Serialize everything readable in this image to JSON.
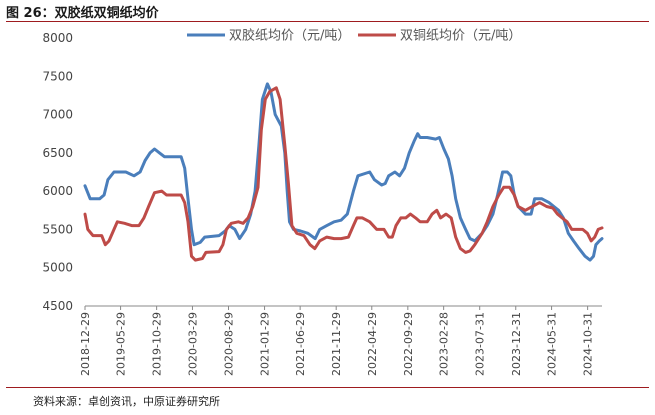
{
  "header": {
    "title": "图 26：双胶纸双铜纸均价"
  },
  "footer": {
    "source": "资料来源：卓创资讯，中原证券研究所"
  },
  "colors": {
    "series1": "#4a7ebb",
    "series2": "#be4b48",
    "accent": "#9e1b1f"
  },
  "chart_data": {
    "type": "line",
    "title": "",
    "xlabel": "",
    "ylabel": "",
    "ylim": [
      4500,
      8000
    ],
    "yticks": [
      4500,
      5000,
      5500,
      6000,
      6500,
      7000,
      7500,
      8000
    ],
    "x_range": [
      "2018-12-29",
      "2024-12-31"
    ],
    "x_ticks": [
      "2018-12-29",
      "2019-05-29",
      "2019-10-29",
      "2020-03-29",
      "2020-08-29",
      "2021-01-29",
      "2021-06-29",
      "2021-11-29",
      "2022-04-29",
      "2022-09-29",
      "2023-02-28",
      "2023-07-31",
      "2023-12-31",
      "2024-05-31",
      "2024-10-31"
    ],
    "grid": false,
    "legend_position": "top",
    "series": [
      {
        "name": "双胶纸均价（元/吨）",
        "points": [
          [
            "2018-12-29",
            6070
          ],
          [
            "2019-01-20",
            5900
          ],
          [
            "2019-03-01",
            5900
          ],
          [
            "2019-03-20",
            5950
          ],
          [
            "2019-04-05",
            6150
          ],
          [
            "2019-05-01",
            6250
          ],
          [
            "2019-06-20",
            6250
          ],
          [
            "2019-07-25",
            6200
          ],
          [
            "2019-08-20",
            6250
          ],
          [
            "2019-09-10",
            6400
          ],
          [
            "2019-10-01",
            6500
          ],
          [
            "2019-10-20",
            6550
          ],
          [
            "2019-11-10",
            6500
          ],
          [
            "2019-12-01",
            6450
          ],
          [
            "2020-02-10",
            6450
          ],
          [
            "2020-02-25",
            6300
          ],
          [
            "2020-03-10",
            5900
          ],
          [
            "2020-03-25",
            5500
          ],
          [
            "2020-04-05",
            5300
          ],
          [
            "2020-05-01",
            5330
          ],
          [
            "2020-05-20",
            5400
          ],
          [
            "2020-07-20",
            5420
          ],
          [
            "2020-08-15",
            5480
          ],
          [
            "2020-09-01",
            5550
          ],
          [
            "2020-09-25",
            5500
          ],
          [
            "2020-10-15",
            5380
          ],
          [
            "2020-11-10",
            5500
          ],
          [
            "2020-12-01",
            5700
          ],
          [
            "2020-12-20",
            6000
          ],
          [
            "2021-01-05",
            6600
          ],
          [
            "2021-01-20",
            7200
          ],
          [
            "2021-02-10",
            7400
          ],
          [
            "2021-02-25",
            7300
          ],
          [
            "2021-03-15",
            7000
          ],
          [
            "2021-04-10",
            6850
          ],
          [
            "2021-04-25",
            6500
          ],
          [
            "2021-05-05",
            6000
          ],
          [
            "2021-05-15",
            5600
          ],
          [
            "2021-06-01",
            5500
          ],
          [
            "2021-07-01",
            5480
          ],
          [
            "2021-08-01",
            5450
          ],
          [
            "2021-09-01",
            5380
          ],
          [
            "2021-09-20",
            5500
          ],
          [
            "2021-10-20",
            5550
          ],
          [
            "2021-11-20",
            5600
          ],
          [
            "2021-12-20",
            5620
          ],
          [
            "2022-01-15",
            5700
          ],
          [
            "2022-02-10",
            6000
          ],
          [
            "2022-03-01",
            6200
          ],
          [
            "2022-04-20",
            6250
          ],
          [
            "2022-05-10",
            6150
          ],
          [
            "2022-06-10",
            6080
          ],
          [
            "2022-06-25",
            6100
          ],
          [
            "2022-07-10",
            6200
          ],
          [
            "2022-08-05",
            6250
          ],
          [
            "2022-08-25",
            6200
          ],
          [
            "2022-09-15",
            6300
          ],
          [
            "2022-10-05",
            6500
          ],
          [
            "2022-10-25",
            6650
          ],
          [
            "2022-11-10",
            6750
          ],
          [
            "2022-11-20",
            6700
          ],
          [
            "2022-12-20",
            6700
          ],
          [
            "2023-01-25",
            6680
          ],
          [
            "2023-02-10",
            6700
          ],
          [
            "2023-03-01",
            6550
          ],
          [
            "2023-03-20",
            6420
          ],
          [
            "2023-04-05",
            6200
          ],
          [
            "2023-04-20",
            5900
          ],
          [
            "2023-05-10",
            5650
          ],
          [
            "2023-06-01",
            5500
          ],
          [
            "2023-06-20",
            5380
          ],
          [
            "2023-07-10",
            5350
          ],
          [
            "2023-08-10",
            5450
          ],
          [
            "2023-09-01",
            5550
          ],
          [
            "2023-09-25",
            5700
          ],
          [
            "2023-10-15",
            5950
          ],
          [
            "2023-11-05",
            6250
          ],
          [
            "2023-11-25",
            6250
          ],
          [
            "2023-12-10",
            6200
          ],
          [
            "2023-12-25",
            5950
          ],
          [
            "2024-01-10",
            5800
          ],
          [
            "2024-02-10",
            5700
          ],
          [
            "2024-03-05",
            5700
          ],
          [
            "2024-03-20",
            5900
          ],
          [
            "2024-04-20",
            5900
          ],
          [
            "2024-05-20",
            5850
          ],
          [
            "2024-06-10",
            5800
          ],
          [
            "2024-06-30",
            5750
          ],
          [
            "2024-07-20",
            5650
          ],
          [
            "2024-08-10",
            5450
          ],
          [
            "2024-09-01",
            5350
          ],
          [
            "2024-09-25",
            5250
          ],
          [
            "2024-10-20",
            5150
          ],
          [
            "2024-11-10",
            5100
          ],
          [
            "2024-11-25",
            5150
          ],
          [
            "2024-12-05",
            5300
          ],
          [
            "2024-12-20",
            5350
          ],
          [
            "2024-12-31",
            5380
          ]
        ]
      },
      {
        "name": "双铜纸均价（元/吨）",
        "points": [
          [
            "2018-12-29",
            5700
          ],
          [
            "2019-01-10",
            5500
          ],
          [
            "2019-02-01",
            5420
          ],
          [
            "2019-03-10",
            5420
          ],
          [
            "2019-03-25",
            5300
          ],
          [
            "2019-04-10",
            5350
          ],
          [
            "2019-05-01",
            5500
          ],
          [
            "2019-05-15",
            5600
          ],
          [
            "2019-06-15",
            5580
          ],
          [
            "2019-07-15",
            5550
          ],
          [
            "2019-08-15",
            5550
          ],
          [
            "2019-09-05",
            5650
          ],
          [
            "2019-09-25",
            5800
          ],
          [
            "2019-10-20",
            5980
          ],
          [
            "2019-11-20",
            6000
          ],
          [
            "2019-12-10",
            5950
          ],
          [
            "2020-02-10",
            5950
          ],
          [
            "2020-02-25",
            5850
          ],
          [
            "2020-03-10",
            5600
          ],
          [
            "2020-03-25",
            5150
          ],
          [
            "2020-04-10",
            5100
          ],
          [
            "2020-05-10",
            5120
          ],
          [
            "2020-05-25",
            5200
          ],
          [
            "2020-07-20",
            5210
          ],
          [
            "2020-08-05",
            5300
          ],
          [
            "2020-08-20",
            5500
          ],
          [
            "2020-09-10",
            5580
          ],
          [
            "2020-10-10",
            5600
          ],
          [
            "2020-10-30",
            5580
          ],
          [
            "2020-11-20",
            5650
          ],
          [
            "2020-12-10",
            5800
          ],
          [
            "2021-01-01",
            6050
          ],
          [
            "2021-01-15",
            6800
          ],
          [
            "2021-02-01",
            7200
          ],
          [
            "2021-02-20",
            7300
          ],
          [
            "2021-03-20",
            7350
          ],
          [
            "2021-04-05",
            7200
          ],
          [
            "2021-04-25",
            6600
          ],
          [
            "2021-05-10",
            6100
          ],
          [
            "2021-05-25",
            5550
          ],
          [
            "2021-06-15",
            5450
          ],
          [
            "2021-07-15",
            5420
          ],
          [
            "2021-08-10",
            5300
          ],
          [
            "2021-08-30",
            5250
          ],
          [
            "2021-09-20",
            5350
          ],
          [
            "2021-10-20",
            5400
          ],
          [
            "2021-11-20",
            5380
          ],
          [
            "2021-12-20",
            5380
          ],
          [
            "2022-01-20",
            5400
          ],
          [
            "2022-02-10",
            5550
          ],
          [
            "2022-02-25",
            5650
          ],
          [
            "2022-03-20",
            5650
          ],
          [
            "2022-04-20",
            5600
          ],
          [
            "2022-05-20",
            5500
          ],
          [
            "2022-06-20",
            5500
          ],
          [
            "2022-07-10",
            5400
          ],
          [
            "2022-07-25",
            5400
          ],
          [
            "2022-08-10",
            5550
          ],
          [
            "2022-08-30",
            5650
          ],
          [
            "2022-09-20",
            5650
          ],
          [
            "2022-10-10",
            5700
          ],
          [
            "2022-11-01",
            5650
          ],
          [
            "2022-11-20",
            5600
          ],
          [
            "2022-12-20",
            5600
          ],
          [
            "2023-01-10",
            5700
          ],
          [
            "2023-01-30",
            5750
          ],
          [
            "2023-02-15",
            5650
          ],
          [
            "2023-03-10",
            5700
          ],
          [
            "2023-04-01",
            5650
          ],
          [
            "2023-04-20",
            5400
          ],
          [
            "2023-05-10",
            5250
          ],
          [
            "2023-06-01",
            5200
          ],
          [
            "2023-06-20",
            5220
          ],
          [
            "2023-07-10",
            5300
          ],
          [
            "2023-08-10",
            5450
          ],
          [
            "2023-09-01",
            5600
          ],
          [
            "2023-09-25",
            5800
          ],
          [
            "2023-10-20",
            5950
          ],
          [
            "2023-11-10",
            6050
          ],
          [
            "2023-12-05",
            6050
          ],
          [
            "2023-12-25",
            5950
          ],
          [
            "2024-01-10",
            5800
          ],
          [
            "2024-02-10",
            5750
          ],
          [
            "2024-03-10",
            5800
          ],
          [
            "2024-04-10",
            5850
          ],
          [
            "2024-05-10",
            5800
          ],
          [
            "2024-06-05",
            5780
          ],
          [
            "2024-06-25",
            5700
          ],
          [
            "2024-07-15",
            5650
          ],
          [
            "2024-08-05",
            5600
          ],
          [
            "2024-08-25",
            5500
          ],
          [
            "2024-09-15",
            5500
          ],
          [
            "2024-10-10",
            5500
          ],
          [
            "2024-10-30",
            5450
          ],
          [
            "2024-11-15",
            5350
          ],
          [
            "2024-11-30",
            5400
          ],
          [
            "2024-12-15",
            5500
          ],
          [
            "2024-12-31",
            5520
          ]
        ]
      }
    ]
  }
}
